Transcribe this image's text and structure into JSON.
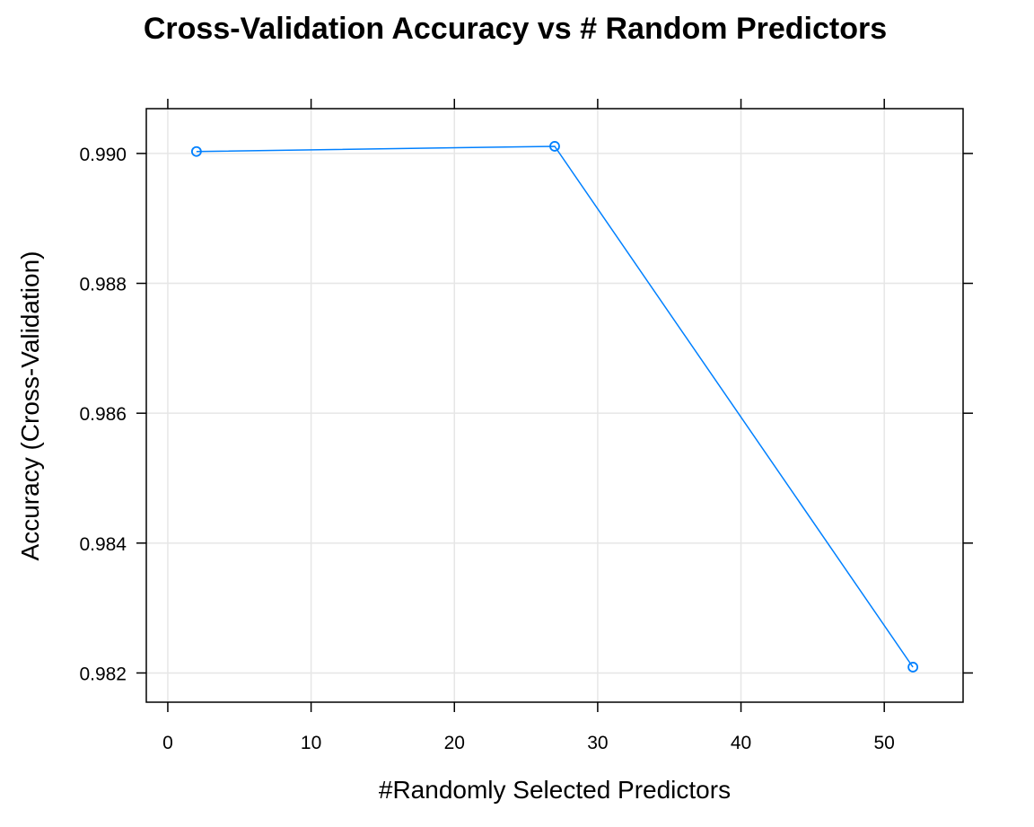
{
  "chart_data": {
    "type": "line",
    "title": "Cross-Validation Accuracy vs # Random Predictors",
    "xlabel": "#Randomly Selected Predictors",
    "ylabel": "Accuracy (Cross-Validation)",
    "xlim": [
      -1.5,
      55.5
    ],
    "ylim": [
      0.98155,
      0.99069
    ],
    "x_ticks": [
      0,
      10,
      20,
      30,
      40,
      50
    ],
    "y_ticks": [
      0.982,
      0.984,
      0.986,
      0.988,
      0.99
    ],
    "x_tick_labels": [
      "0",
      "10",
      "20",
      "30",
      "40",
      "50"
    ],
    "y_tick_labels": [
      "0.982",
      "0.984",
      "0.986",
      "0.988",
      "0.990"
    ],
    "grid": true,
    "series": [
      {
        "x": [
          2,
          27,
          52
        ],
        "y": [
          0.99003,
          0.99011,
          0.98209
        ],
        "color": "#0080ff",
        "marker": "circle"
      }
    ]
  }
}
